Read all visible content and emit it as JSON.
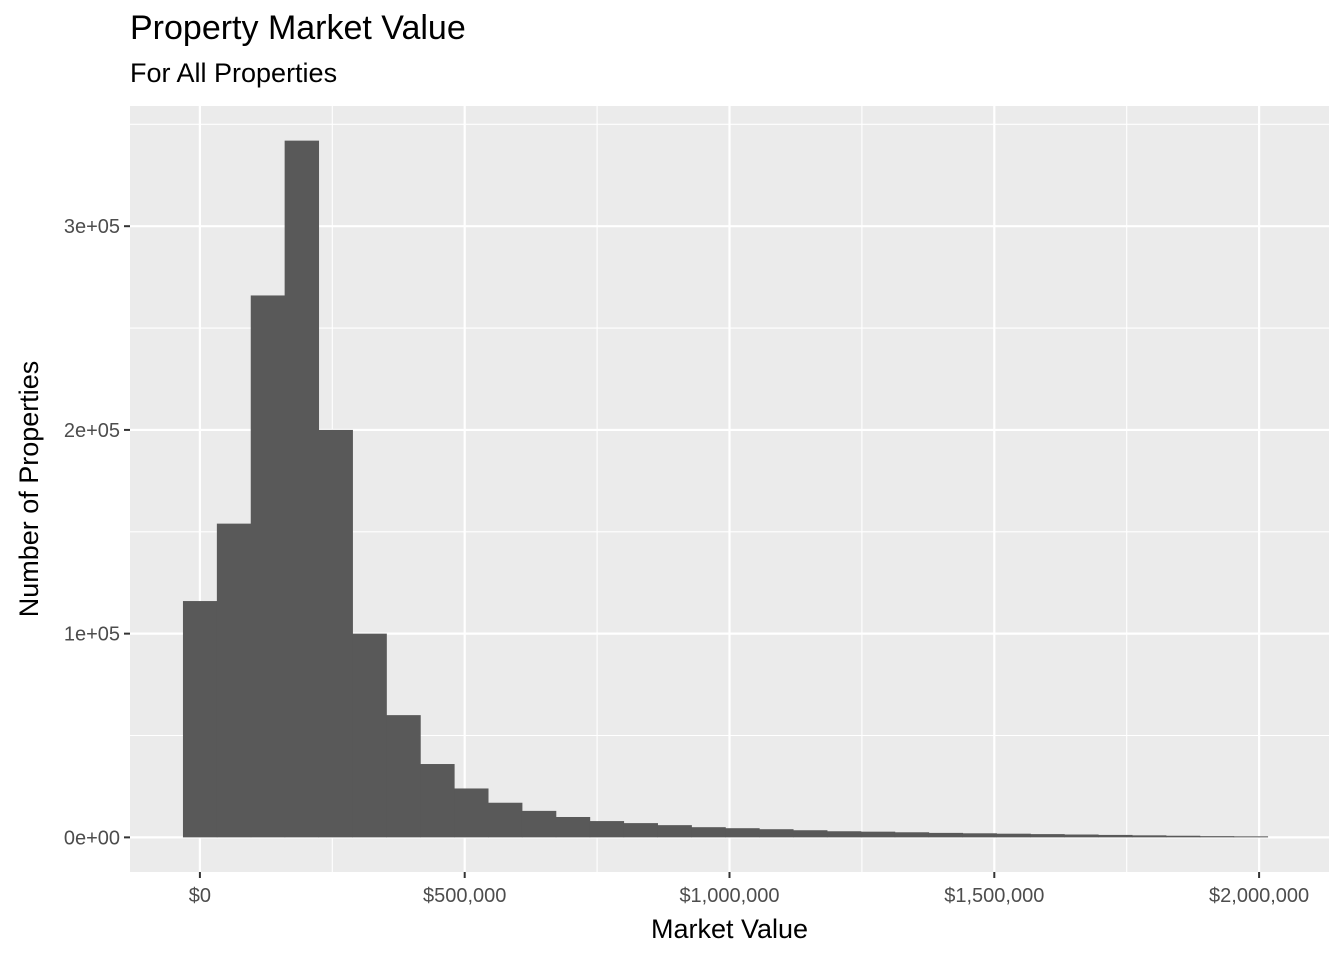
{
  "chart_data": {
    "type": "bar",
    "title": "Property Market Value",
    "subtitle": "For All Properties",
    "xlabel": "Market Value",
    "ylabel": "Number of Properties",
    "bin_width": 64000,
    "bin_start": -32000,
    "values": [
      116000,
      154000,
      266000,
      342000,
      200000,
      100000,
      60000,
      36000,
      24000,
      17000,
      13000,
      10000,
      8000,
      7000,
      6000,
      5000,
      4500,
      4000,
      3500,
      3000,
      2800,
      2500,
      2200,
      2000,
      1800,
      1600,
      1400,
      1200,
      1000,
      800,
      600,
      500
    ],
    "xlim": [
      -132000,
      2132000
    ],
    "ylim": [
      -17000,
      359000
    ],
    "x_ticks": [
      0,
      500000,
      1000000,
      1500000,
      2000000
    ],
    "x_tick_labels": [
      "$0",
      "$500,000",
      "$1,000,000",
      "$1,500,000",
      "$2,000,000"
    ],
    "y_ticks": [
      0,
      100000,
      200000,
      300000
    ],
    "y_tick_labels": [
      "0e+00",
      "1e+05",
      "2e+05",
      "3e+05"
    ],
    "grid": true,
    "bar_color": "#595959",
    "panel_color": "#ebebeb",
    "grid_color": "#ffffff"
  }
}
